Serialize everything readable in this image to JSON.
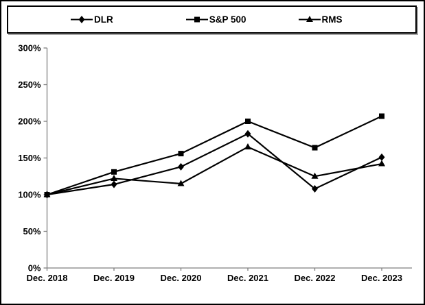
{
  "window": {
    "background": "#ffffff",
    "border_color": "#000000"
  },
  "colors": {
    "axis": "#7f7f7f",
    "text": "#000000",
    "series": "#000000"
  },
  "legend": {
    "position": "top"
  },
  "chart_data": {
    "type": "line",
    "title": "",
    "xlabel": "",
    "ylabel": "",
    "categories": [
      "Dec. 2018",
      "Dec. 2019",
      "Dec. 2020",
      "Dec. 2021",
      "Dec. 2022",
      "Dec. 2023"
    ],
    "series": [
      {
        "name": "DLR",
        "marker": "diamond",
        "color": "#000000",
        "values": [
          100,
          114,
          138,
          183,
          108,
          151
        ]
      },
      {
        "name": "S&P 500",
        "marker": "square",
        "color": "#000000",
        "values": [
          100,
          131,
          156,
          200,
          164,
          207
        ]
      },
      {
        "name": "RMS",
        "marker": "triangle",
        "color": "#000000",
        "values": [
          100,
          122,
          115,
          165,
          125,
          142
        ]
      }
    ],
    "ylim": [
      0,
      300
    ],
    "ytick_step": 50,
    "yticks": [
      "0%",
      "50%",
      "100%",
      "150%",
      "200%",
      "250%",
      "300%"
    ],
    "grid": false,
    "legend_position": "top"
  }
}
